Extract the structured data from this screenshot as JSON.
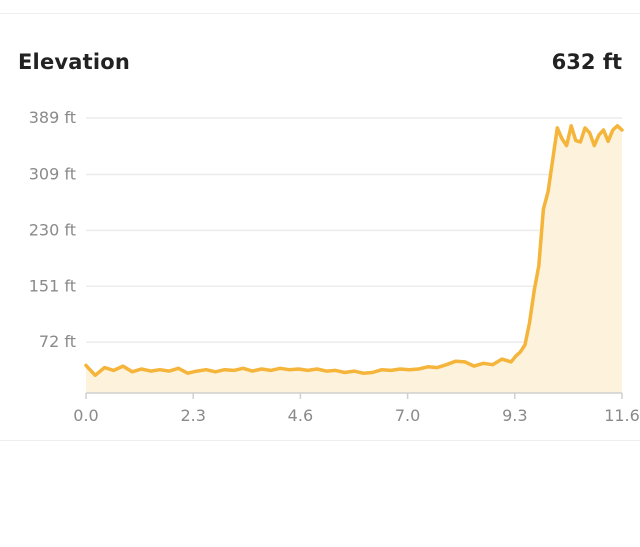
{
  "header": {
    "title": "Elevation",
    "total": "632 ft"
  },
  "colors": {
    "line": "#f5b43a",
    "fill": "#fdf3dd",
    "grid": "#ececec",
    "axis": "#d0d0d0",
    "tick_text": "#8a8a8a"
  },
  "chart_data": {
    "type": "area",
    "title": "Elevation",
    "xlabel": "",
    "ylabel": "",
    "grid": true,
    "xlim": [
      0,
      11.6
    ],
    "ylim": [
      0,
      389
    ],
    "x_ticks": [
      "0.0",
      "2.3",
      "4.6",
      "7.0",
      "9.3",
      "11.6"
    ],
    "y_ticks": [
      "389 ft",
      "309 ft",
      "230 ft",
      "151 ft",
      "72 ft"
    ],
    "y_tick_values": [
      389,
      309,
      230,
      151,
      72
    ],
    "x": [
      0.0,
      0.2,
      0.4,
      0.6,
      0.8,
      1.0,
      1.2,
      1.4,
      1.6,
      1.8,
      2.0,
      2.2,
      2.4,
      2.6,
      2.8,
      3.0,
      3.2,
      3.4,
      3.6,
      3.8,
      4.0,
      4.2,
      4.4,
      4.6,
      4.8,
      5.0,
      5.2,
      5.4,
      5.6,
      5.8,
      6.0,
      6.2,
      6.4,
      6.6,
      6.8,
      7.0,
      7.2,
      7.4,
      7.6,
      7.8,
      8.0,
      8.2,
      8.4,
      8.6,
      8.8,
      9.0,
      9.2,
      9.3,
      9.4,
      9.5,
      9.6,
      9.7,
      9.8,
      9.9,
      10.0,
      10.1,
      10.2,
      10.3,
      10.4,
      10.5,
      10.6,
      10.7,
      10.8,
      10.9,
      11.0,
      11.1,
      11.2,
      11.3,
      11.4,
      11.5,
      11.6
    ],
    "series": [
      {
        "values": [
          39,
          25,
          36,
          32,
          38,
          30,
          34,
          31,
          33,
          31,
          35,
          28,
          31,
          33,
          30,
          33,
          32,
          35,
          31,
          34,
          32,
          35,
          33,
          34,
          32,
          34,
          31,
          32,
          29,
          31,
          28,
          29,
          33,
          32,
          34,
          33,
          34,
          37,
          36,
          40,
          45,
          44,
          38,
          42,
          40,
          48,
          44,
          52,
          58,
          68,
          100,
          145,
          180,
          260,
          285,
          330,
          375,
          360,
          350,
          378,
          357,
          355,
          375,
          368,
          350,
          365,
          372,
          356,
          372,
          378,
          372
        ]
      }
    ]
  }
}
